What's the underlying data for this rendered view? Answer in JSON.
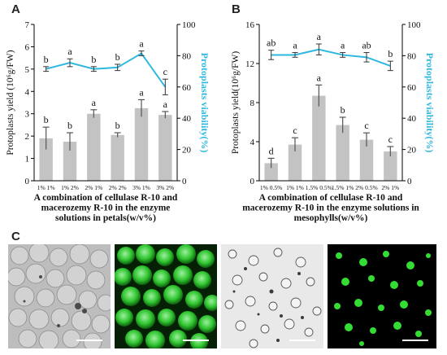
{
  "panels": {
    "a": "A",
    "b": "B",
    "c": "C"
  },
  "colors": {
    "bar": "#c3c3c3",
    "line": "#2eb8e0",
    "axis": "#000000",
    "micrograph_green": "#2fd12f"
  },
  "chart_data": [
    {
      "type": "bar",
      "panel": "A",
      "categories": [
        "1% 1%",
        "1% 2%",
        "2% 1%",
        "2% 2%",
        "3% 1%",
        "3% 2%"
      ],
      "xlabel": "A combination of cellulase R-10 and\nmacerozemy R-10 in the enzyme\nsolutions in petals(w/v%)",
      "ylabel": "Protoplasts yield (10⁶g/FW)",
      "y2label": "Protoplasts viability(%)",
      "ylim": [
        0,
        7
      ],
      "y2lim": [
        0,
        100
      ],
      "yticks": [
        0,
        1,
        2,
        3,
        4,
        5,
        6,
        7
      ],
      "y2ticks": [
        0,
        20,
        40,
        60,
        80,
        100
      ],
      "series": [
        {
          "kind": "bar",
          "axis": "left",
          "values": [
            1.9,
            1.75,
            3.0,
            2.05,
            3.25,
            2.95
          ],
          "errors": [
            0.5,
            0.4,
            0.18,
            0.1,
            0.38,
            0.15
          ],
          "labels": [
            "b",
            "b",
            "a",
            "b",
            "a",
            "a"
          ]
        },
        {
          "kind": "line",
          "axis": "right",
          "values": [
            71.5,
            75.5,
            71.5,
            72.5,
            81.5,
            60.0
          ],
          "errors": [
            1.5,
            2.5,
            1.5,
            2.0,
            1.5,
            5.0
          ],
          "labels": [
            "b",
            "a",
            "b",
            "b",
            "a",
            "c"
          ]
        }
      ]
    },
    {
      "type": "bar",
      "panel": "B",
      "categories": [
        "1% 0.5%",
        "1% 1%",
        "1.5% 0.5%",
        "1.5% 1%",
        "2% 0.5%",
        "2% 1%"
      ],
      "xlabel": "A combination of cellulase R-10 and\nmacerozemy R-10 in the enzyme solutions in\nmesophylls(w/v%)",
      "ylabel": "Protoplasts yield(10⁶g/FW)",
      "y2label": "Protoplasts viability(%)",
      "ylim": [
        0,
        16
      ],
      "y2lim": [
        0,
        100
      ],
      "yticks": [
        0,
        4,
        8,
        12,
        16
      ],
      "y2ticks": [
        0,
        20,
        40,
        60,
        80,
        100
      ],
      "series": [
        {
          "kind": "bar",
          "axis": "left",
          "values": [
            1.8,
            3.7,
            8.7,
            5.7,
            4.2,
            3.0
          ],
          "errors": [
            0.5,
            0.7,
            1.1,
            0.8,
            0.7,
            0.5
          ],
          "labels": [
            "d",
            "c",
            "a",
            "b",
            "c",
            "c"
          ]
        },
        {
          "kind": "line",
          "axis": "right",
          "values": [
            80.5,
            80.5,
            84.0,
            80.5,
            79.0,
            73.5
          ],
          "errors": [
            3.0,
            1.5,
            3.5,
            1.5,
            3.0,
            3.0
          ],
          "labels": [
            "ab",
            "a",
            "a",
            "a",
            "ab",
            "b"
          ]
        }
      ]
    }
  ]
}
